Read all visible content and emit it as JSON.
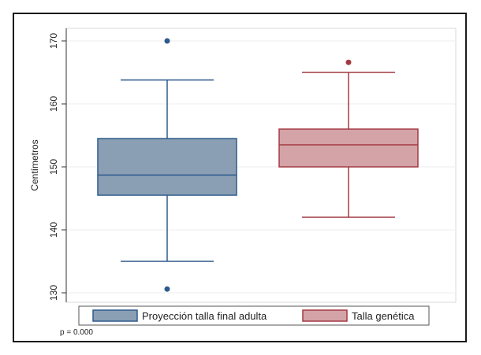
{
  "chart_data": {
    "type": "box",
    "ylabel": "Centímetros",
    "ylim": [
      128.5,
      172
    ],
    "yticks": [
      130,
      140,
      150,
      160,
      170
    ],
    "grid": true,
    "legend_position": "bottom",
    "series": [
      {
        "name": "Proyección talla final adulta",
        "fill": "#8a9fb3",
        "stroke": "#2e5a8c",
        "whisker_low": 135,
        "q1": 145.5,
        "median": 148.7,
        "q3": 154.5,
        "whisker_high": 163.8,
        "outliers": [
          170,
          130.6
        ]
      },
      {
        "name": "Talla genética",
        "fill": "#d4a3a8",
        "stroke": "#a33a42",
        "whisker_low": 142,
        "q1": 150,
        "median": 153.5,
        "q3": 156,
        "whisker_high": 165,
        "outliers": [
          166.6
        ]
      }
    ],
    "annotation": "p = 0.000"
  }
}
